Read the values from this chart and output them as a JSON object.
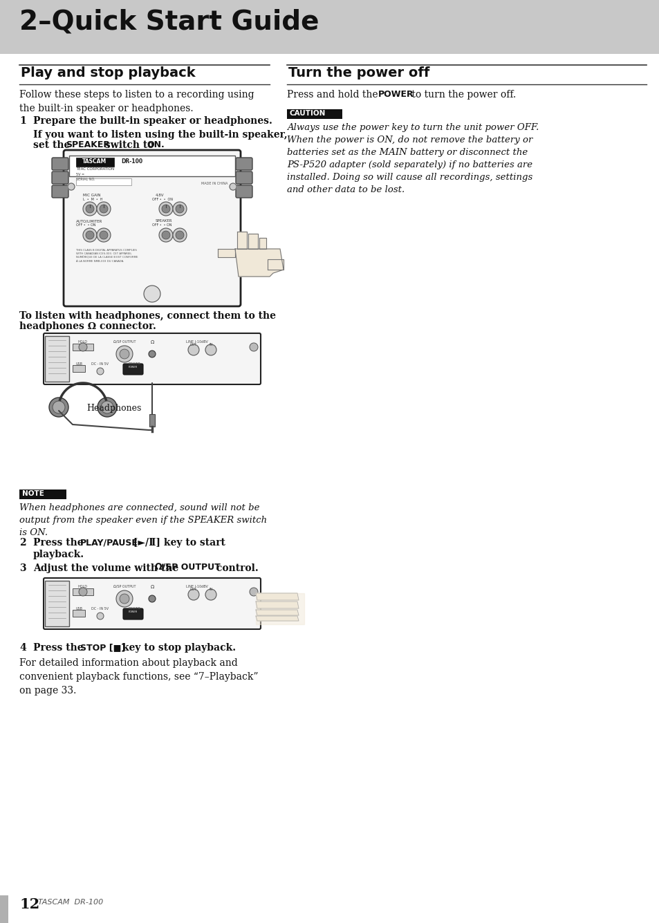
{
  "bg_color": "#ffffff",
  "header_bg": "#c8c8c8",
  "header_text": "2–Quick Start Guide",
  "header_text_color": "#111111",
  "left_section_title": "Play and stop playback",
  "right_section_title": "Turn the power off",
  "footer_page": "12",
  "footer_brand": "TASCAM  DR-100",
  "left_body1": "Follow these steps to listen to a recording using\nthe built-in speaker or headphones.",
  "step1_bold": "Prepare the built-in speaker or headphones.",
  "step1_sub": "If you want to listen using the built-in speaker,\nset the ",
  "step1_sub2": "SPEAKER",
  "step1_sub3": " switch to ",
  "step1_sub4": "ON.",
  "caption1a": "To listen with headphones, connect them to the",
  "caption1b": "headphones Ω connector.",
  "note_label": "NOTE",
  "note_text": "When headphones are connected, sound will not be\noutput from the speaker even if the SPEAKER switch\nis ON.",
  "step2a": "2",
  "step2b": "Press the ",
  "step2c": "PLAY/PAUSE [►/Ⅱ]",
  "step2d": " key to start\n      playback.",
  "step3a": "3",
  "step3b": "Adjust the volume with the ",
  "step3c": "Ω/SP OUTPUT",
  "step3d": " control.",
  "step4a": "4",
  "step4b": "Press the ",
  "step4c": "STOP [■]",
  "step4d": " key to stop playback.",
  "step4_body": "For detailed information about playback and\nconvenient playback functions, see “7–Playback”\non page 33.",
  "headphones_label": "Headphones",
  "right_body1a": "Press and hold the ",
  "right_body1b": "POWER",
  "right_body1c": " to turn the power off.",
  "caution_label": "CAUTION",
  "caution_text": "Always use the power key to turn the unit power OFF.\nWhen the power is ON, do not remove the battery or\nbatteries set as the MAIN battery or disconnect the\nPS-P520 adapter (sold separately) if no batteries are\ninstalled. Doing so will cause all recordings, settings\nand other data to be lost.",
  "sidebar_color": "#b0b0b0",
  "line_color": "#333333",
  "device_outline": "#222222",
  "device_fill": "#f8f8f8"
}
